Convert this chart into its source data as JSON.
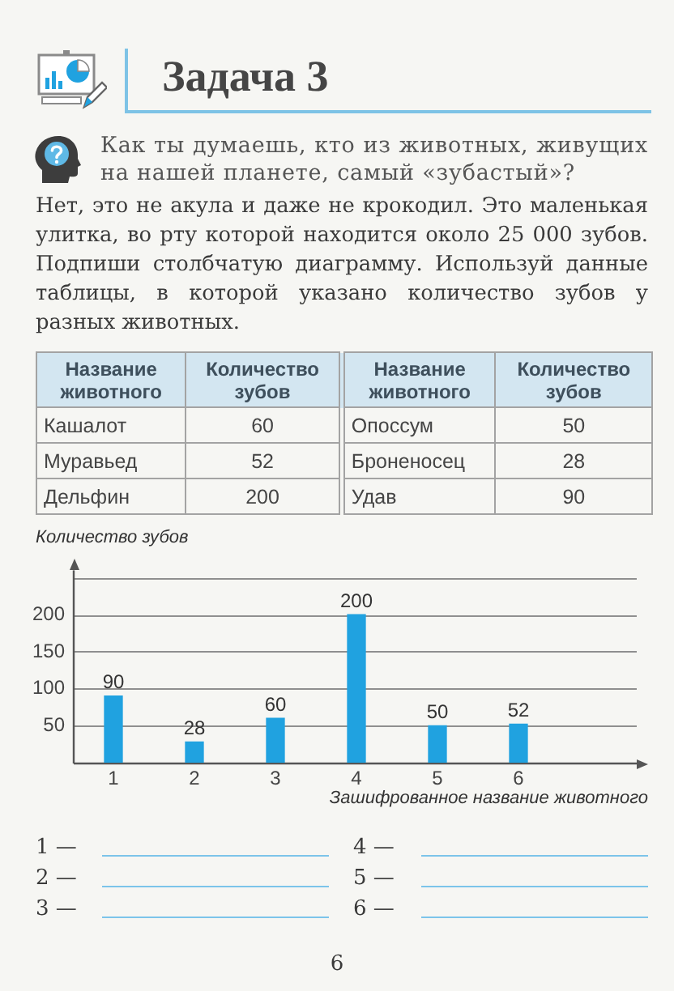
{
  "chart_data": {
    "type": "bar",
    "title": "Задача 3",
    "annotations": [
      "Как ты думаешь, кто из животных, живущих на нашей планете, самый «зубастый»?",
      "Нет, это не акула и даже не крокодил. Это маленькая улитка, во рту которой находится около 25 000 зубов. Подпиши столбчатую диаграмму. Используй данные таблицы, в которой указано количество зубов у разных животных.",
      "Название животного",
      "Количество зубов",
      "Название животного",
      "Количество зубов",
      "Кашалот",
      "60",
      "Опоссум",
      "50",
      "Муравьед",
      "52",
      "Броненосец",
      "28",
      "Дельфин",
      "200",
      "Удав",
      "90",
      "1 —",
      "2 —",
      "3 —",
      "4 —",
      "5 —",
      "6 —",
      "6"
    ],
    "ylabel": "Количество зубов",
    "xlabel": "Зашифрованное название животного",
    "categories": [
      "1",
      "2",
      "3",
      "4",
      "5",
      "6"
    ],
    "values": [
      90,
      28,
      60,
      200,
      50,
      52
    ],
    "color": "#20a2e0",
    "ylim": [
      0,
      260
    ],
    "yticks": [
      50,
      100,
      150,
      200,
      {
        "value": 250,
        "label": null
      }
    ],
    "grid": "y",
    "data_labels": true
  }
}
